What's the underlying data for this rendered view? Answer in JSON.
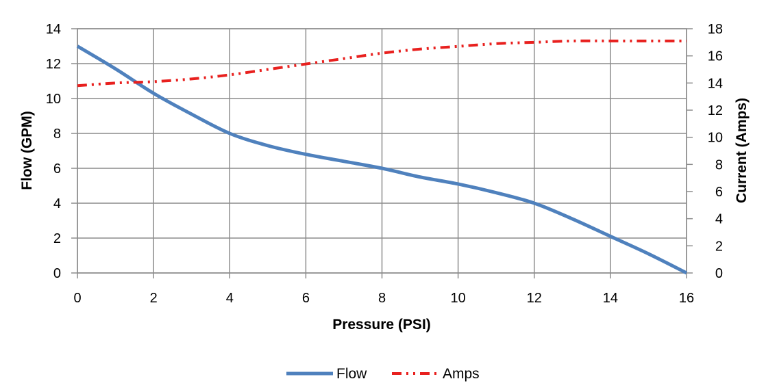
{
  "chart_data": {
    "type": "line",
    "title": "",
    "xlabel": "Pressure (PSI)",
    "ylabel": "Flow (GPM)",
    "y2label": "Current (Amps)",
    "xlim": [
      0,
      16
    ],
    "ylim": [
      0,
      14
    ],
    "y2lim": [
      0,
      18
    ],
    "x_ticks": [
      "0",
      "2",
      "4",
      "6",
      "8",
      "10",
      "12",
      "14",
      "16"
    ],
    "y_ticks": [
      "0",
      "2",
      "4",
      "6",
      "8",
      "10",
      "12",
      "14"
    ],
    "y2_ticks": [
      "0",
      "2",
      "4",
      "6",
      "8",
      "10",
      "12",
      "14",
      "16",
      "18"
    ],
    "grid": true,
    "legend_position": "bottom",
    "series": [
      {
        "name": "Flow",
        "axis": "left",
        "color": "#4f81bd",
        "style": "solid",
        "x": [
          0,
          1,
          2,
          3,
          4,
          5,
          6,
          7,
          8,
          9,
          10,
          11,
          12,
          13,
          14,
          15,
          16
        ],
        "y": [
          13.0,
          11.7,
          10.3,
          9.1,
          8.0,
          7.3,
          6.8,
          6.4,
          6.0,
          5.5,
          5.1,
          4.6,
          4.0,
          3.1,
          2.1,
          1.1,
          0.0
        ]
      },
      {
        "name": "Amps",
        "axis": "right",
        "color": "#e8201e",
        "style": "dash-dot-dot",
        "x": [
          0,
          1,
          2,
          3,
          4,
          5,
          6,
          7,
          8,
          9,
          10,
          11,
          12,
          13,
          14,
          15,
          16
        ],
        "y": [
          13.8,
          14.0,
          14.1,
          14.3,
          14.6,
          15.0,
          15.4,
          15.8,
          16.2,
          16.5,
          16.7,
          16.9,
          17.0,
          17.1,
          17.1,
          17.1,
          17.1
        ]
      }
    ]
  }
}
